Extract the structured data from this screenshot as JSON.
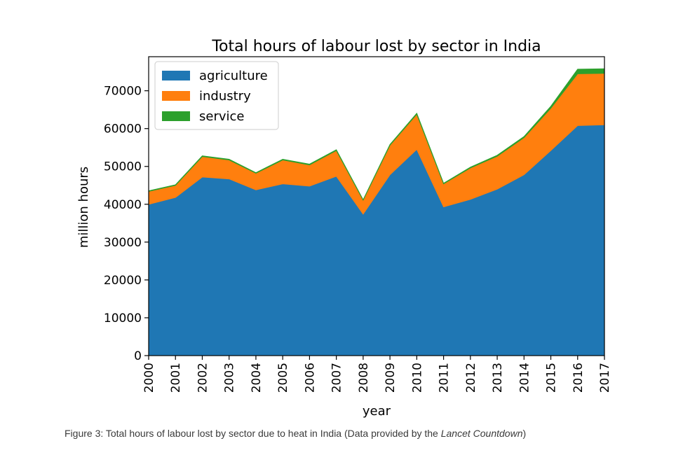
{
  "chart_data": {
    "type": "area",
    "stacked": true,
    "title": "Total hours of labour lost by sector in India",
    "xlabel": "year",
    "ylabel": "million hours",
    "x": [
      2000,
      2001,
      2002,
      2003,
      2004,
      2005,
      2006,
      2007,
      2008,
      2009,
      2010,
      2011,
      2012,
      2013,
      2014,
      2015,
      2016,
      2017
    ],
    "xlim": [
      2000,
      2017
    ],
    "ylim": [
      0,
      79000
    ],
    "yticks": [
      0,
      10000,
      20000,
      30000,
      40000,
      50000,
      60000,
      70000
    ],
    "series": [
      {
        "name": "agriculture",
        "color": "#1f77b4",
        "values": [
          40000,
          41800,
          47200,
          46700,
          43800,
          45400,
          44800,
          47400,
          37400,
          47800,
          54500,
          39300,
          41300,
          44000,
          47800,
          54200,
          60800,
          61000
        ]
      },
      {
        "name": "industry",
        "color": "#ff7f0e",
        "values": [
          3400,
          3200,
          5400,
          5000,
          4400,
          6300,
          5600,
          6800,
          3700,
          7800,
          9300,
          6100,
          8300,
          8700,
          9800,
          11200,
          13700,
          13600
        ]
      },
      {
        "name": "service",
        "color": "#2ca02c",
        "values": [
          150,
          150,
          200,
          200,
          150,
          200,
          200,
          200,
          100,
          200,
          250,
          150,
          200,
          250,
          300,
          500,
          1200,
          1200
        ]
      }
    ],
    "legend": "top-left",
    "grid": false
  },
  "caption": {
    "main": "Figure 3: Total hours of labour lost by sector due to heat in India (Data provided by the ",
    "source": "Lancet Countdown",
    "end": ")"
  }
}
